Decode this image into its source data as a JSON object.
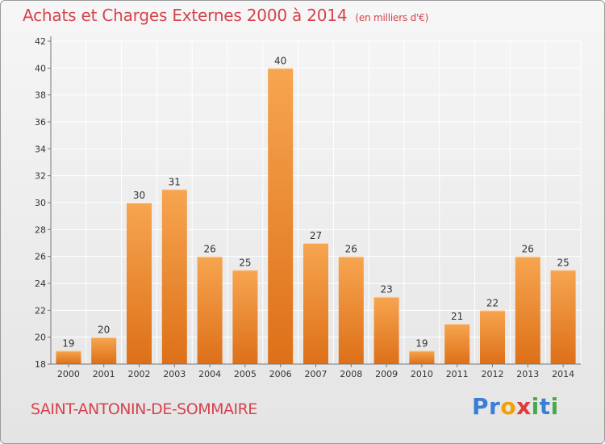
{
  "header": {
    "title": "Achats et Charges Externes 2000 à 2014",
    "subtitle": "(en milliers d'€)"
  },
  "footer": {
    "location": "SAINT-ANTONIN-DE-SOMMAIRE",
    "brand_letters": [
      {
        "char": "P",
        "color": "#3a7fd5"
      },
      {
        "char": "r",
        "color": "#3a7fd5"
      },
      {
        "char": "o",
        "color": "#f4a000"
      },
      {
        "char": "x",
        "color": "#e03a3a"
      },
      {
        "char": "i",
        "color": "#49a84a"
      },
      {
        "char": "t",
        "color": "#3a7fd5"
      },
      {
        "char": "i",
        "color": "#49a84a"
      }
    ]
  },
  "colors": {
    "accent_text": "#d6424e",
    "bar_top": "#f7a550",
    "bar_bottom": "#dd7018",
    "grid": "#ffffff"
  },
  "chart_data": {
    "type": "bar",
    "title": "Achats et Charges Externes 2000 à 2014",
    "subtitle": "(en milliers d'€)",
    "xlabel": "",
    "ylabel": "",
    "categories": [
      "2000",
      "2001",
      "2002",
      "2003",
      "2004",
      "2005",
      "2006",
      "2007",
      "2008",
      "2009",
      "2010",
      "2011",
      "2012",
      "2013",
      "2014"
    ],
    "values": [
      19,
      20,
      30,
      31,
      26,
      25,
      40,
      27,
      26,
      23,
      19,
      21,
      22,
      26,
      25
    ],
    "ylim": [
      18,
      42
    ],
    "yticks": [
      18,
      20,
      22,
      24,
      26,
      28,
      30,
      32,
      34,
      36,
      38,
      40,
      42
    ],
    "grid": true,
    "legend": "none"
  }
}
